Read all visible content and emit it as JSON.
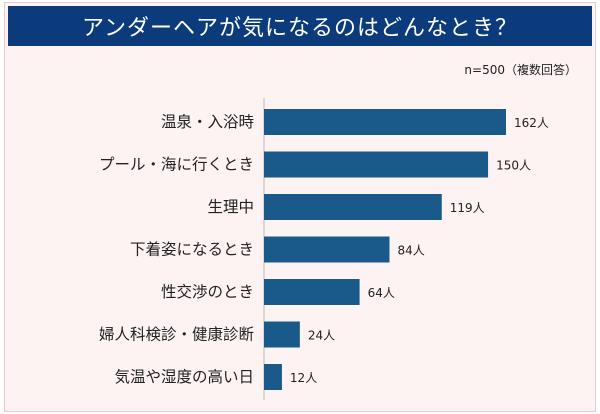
{
  "title": "アンダーヘアが気になるのはどんなとき？",
  "note": "n=500（複数回答）",
  "colors": {
    "bar": "#1a5a8a",
    "title_bg": "#0b3b7a",
    "background": "#fdf3f3"
  },
  "chart_data": {
    "type": "bar",
    "orientation": "horizontal",
    "title": "アンダーヘアが気になるのはどんなとき？",
    "categories": [
      "温泉・入浴時",
      "プール・海に行くとき",
      "生理中",
      "下着姿になるとき",
      "性交渉のとき",
      "婦人科検診・健康診断",
      "気温や湿度の高い日"
    ],
    "values": [
      162,
      150,
      119,
      84,
      64,
      24,
      12
    ],
    "value_labels": [
      "162人",
      "150人",
      "119人",
      "84人",
      "64人",
      "24人",
      "12人"
    ],
    "xlabel": "",
    "ylabel": "",
    "xlim": [
      0,
      162
    ],
    "grid": false,
    "legend": "none"
  }
}
